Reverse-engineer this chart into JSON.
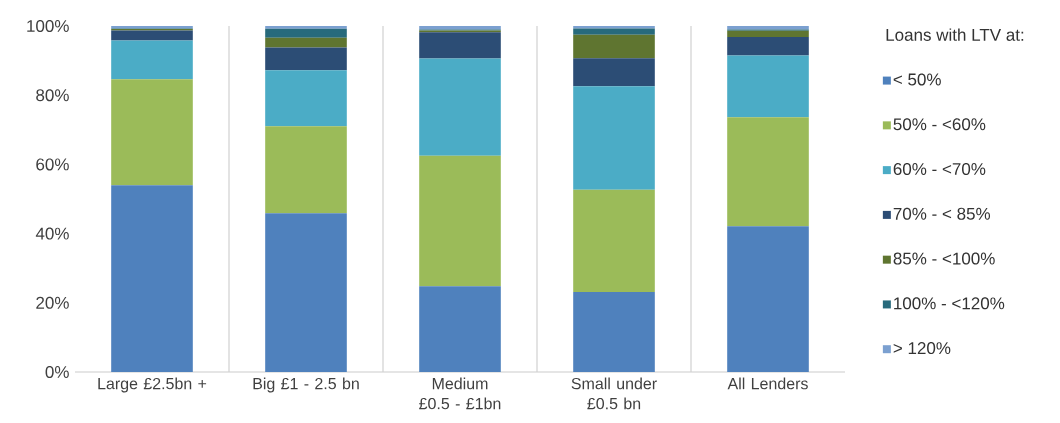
{
  "chart_data": {
    "type": "bar",
    "stacked": true,
    "legend_title": "Loans with LTV at:",
    "legend": "right",
    "grid": "x",
    "categories": [
      "Large £2.5bn +",
      "Big £1 - 2.5 bn",
      "Medium £0.5 - £1bn",
      "Small under £0.5 bn",
      "All Lenders"
    ],
    "ylim": [
      0,
      100
    ],
    "yticks": [
      {
        "value": 0,
        "label": "0%"
      },
      {
        "value": 20,
        "label": "20%"
      },
      {
        "value": 40,
        "label": "40%"
      },
      {
        "value": 60,
        "label": "60%"
      },
      {
        "value": 80,
        "label": "80%"
      },
      {
        "value": 100,
        "label": "100%"
      }
    ],
    "series": [
      {
        "name": "< 50%",
        "color": "#4f81bd",
        "values": [
          54.0,
          45.9,
          24.8,
          23.1,
          42.1
        ]
      },
      {
        "name": "50% - <60%",
        "color": "#9bbb59",
        "values": [
          30.6,
          25.1,
          37.7,
          29.6,
          31.5
        ]
      },
      {
        "name": "60% - <70%",
        "color": "#4bacc6",
        "values": [
          11.2,
          16.2,
          28.1,
          29.9,
          17.9
        ]
      },
      {
        "name": "70% - < 85%",
        "color": "#2c4d75",
        "values": [
          2.9,
          6.6,
          7.6,
          8.1,
          5.3
        ]
      },
      {
        "name": "85% - <100%",
        "color": "#5f7530",
        "values": [
          0.4,
          2.8,
          0.5,
          6.8,
          1.8
        ]
      },
      {
        "name": "100% - <120%",
        "color": "#276a7c",
        "values": [
          0.2,
          2.6,
          0.3,
          1.8,
          0.4
        ]
      },
      {
        "name": "> 120%",
        "color": "#7ba0d0",
        "values": [
          0.7,
          0.8,
          1.0,
          0.7,
          1.0
        ]
      }
    ]
  }
}
